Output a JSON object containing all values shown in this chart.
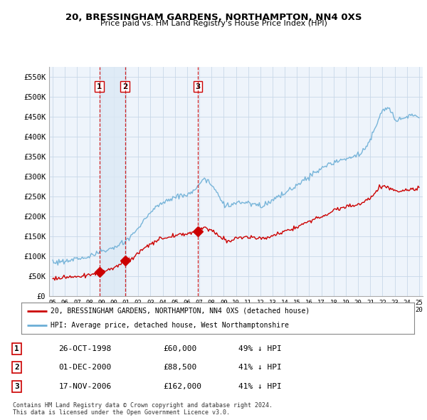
{
  "title": "20, BRESSINGHAM GARDENS, NORTHAMPTON, NN4 0XS",
  "subtitle": "Price paid vs. HM Land Registry's House Price Index (HPI)",
  "legend_line1": "20, BRESSINGHAM GARDENS, NORTHAMPTON, NN4 0XS (detached house)",
  "legend_line2": "HPI: Average price, detached house, West Northamptonshire",
  "footer1": "Contains HM Land Registry data © Crown copyright and database right 2024.",
  "footer2": "This data is licensed under the Open Government Licence v3.0.",
  "transactions": [
    {
      "label": "1",
      "date": "26-OCT-1998",
      "price": 60000,
      "hpi_pct": "49% ↓ HPI",
      "x": 1998.82
    },
    {
      "label": "2",
      "date": "01-DEC-2000",
      "price": 88500,
      "hpi_pct": "41% ↓ HPI",
      "x": 2000.92
    },
    {
      "label": "3",
      "date": "17-NOV-2006",
      "price": 162000,
      "hpi_pct": "41% ↓ HPI",
      "x": 2006.88
    }
  ],
  "hpi_color": "#6baed6",
  "price_color": "#cc0000",
  "vline_color": "#cc0000",
  "shade_color": "#dce9f5",
  "bg_color": "#eef4fb",
  "grid_color": "#c8d8e8",
  "yticks": [
    0,
    50000,
    100000,
    150000,
    200000,
    250000,
    300000,
    350000,
    400000,
    450000,
    500000,
    550000
  ],
  "ytick_labels": [
    "£0",
    "£50K",
    "£100K",
    "£150K",
    "£200K",
    "£250K",
    "£300K",
    "£350K",
    "£400K",
    "£450K",
    "£500K",
    "£550K"
  ],
  "ylim": [
    0,
    575000
  ],
  "xlim": [
    1994.7,
    2025.3
  ]
}
